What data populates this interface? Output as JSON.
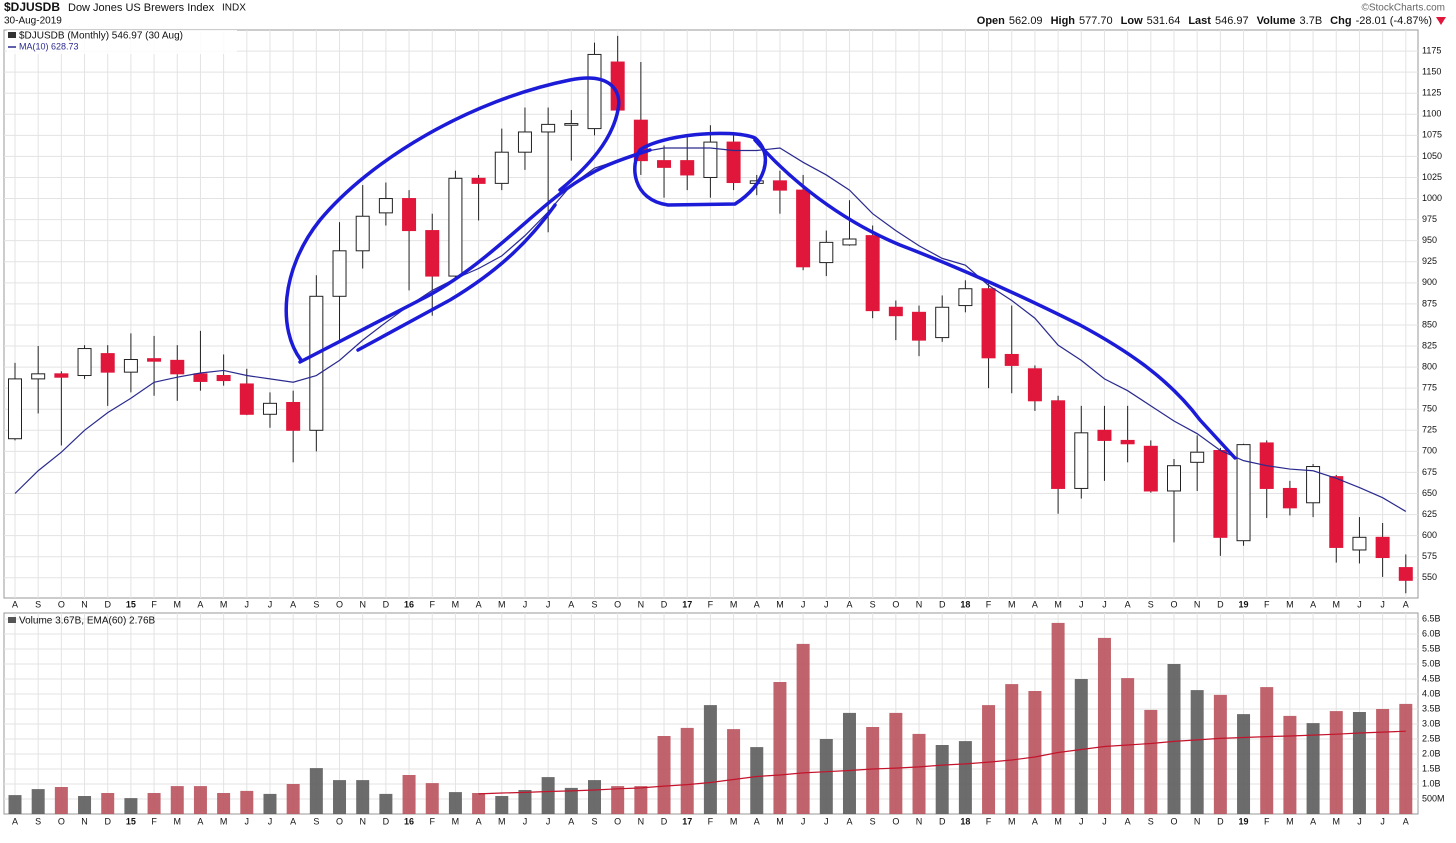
{
  "header": {
    "title": "$DJUSDB",
    "subtitle": "Dow Jones US Brewers Index",
    "exchange": "INDX",
    "date": "30-Aug-2019",
    "source": "©StockCharts.com",
    "quote": [
      {
        "label": "Open",
        "value": "562.09"
      },
      {
        "label": "High",
        "value": "577.70"
      },
      {
        "label": "Low",
        "value": "531.64"
      },
      {
        "label": "Last",
        "value": "546.97"
      },
      {
        "label": "Volume",
        "value": "3.7B"
      },
      {
        "label": "Chg",
        "value": "-28.01 (-4.87%)"
      }
    ]
  },
  "chart_data": [
    {
      "type": "candlestick",
      "legend": "$DJUSDB (Monthly) 546.97 (30 Aug)",
      "categories": [
        "A",
        "S",
        "O",
        "N",
        "D",
        "15",
        "F",
        "M",
        "A",
        "M",
        "J",
        "J",
        "A",
        "S",
        "O",
        "N",
        "D",
        "16",
        "F",
        "M",
        "A",
        "M",
        "J",
        "J",
        "A",
        "S",
        "O",
        "N",
        "D",
        "17",
        "F",
        "M",
        "A",
        "M",
        "J",
        "J",
        "A",
        "S",
        "O",
        "N",
        "D",
        "18",
        "F",
        "M",
        "A",
        "M",
        "J",
        "J",
        "A",
        "S",
        "O",
        "N",
        "D",
        "19",
        "F",
        "M",
        "A",
        "M",
        "J",
        "J",
        "A"
      ],
      "open": [
        715,
        786,
        792,
        790,
        816,
        794,
        810,
        808,
        792,
        790,
        780,
        744,
        758,
        725,
        884,
        938,
        983,
        1000,
        962,
        908,
        1024,
        1018,
        1055,
        1079,
        1087,
        1083,
        1162,
        1093,
        1045,
        1045,
        1025,
        1067,
        1018,
        1021,
        1010,
        924,
        945,
        956,
        871,
        865,
        835,
        873,
        893,
        815,
        798,
        760,
        656,
        725,
        713,
        706,
        653,
        687,
        701,
        594,
        710,
        656,
        639,
        670,
        583,
        598,
        562.09
      ],
      "high": [
        805,
        825,
        795,
        826,
        826,
        840,
        837,
        826,
        843,
        815,
        798,
        770,
        772,
        909,
        972,
        1016,
        1019,
        1010,
        982,
        1033,
        1028,
        1083,
        1108,
        1108,
        1105,
        1185,
        1193,
        1162,
        1063,
        1075,
        1087,
        1075,
        1028,
        1033,
        1028,
        962,
        998,
        968,
        879,
        873,
        885,
        903,
        903,
        873,
        802,
        766,
        754,
        754,
        754,
        713,
        691,
        719,
        704,
        709,
        713,
        665,
        685,
        672,
        622,
        615,
        577.7
      ],
      "low": [
        713,
        745,
        707,
        786,
        754,
        770,
        766,
        760,
        772,
        778,
        743,
        728,
        687,
        700,
        832,
        917,
        968,
        891,
        861,
        903,
        974,
        1010,
        1034,
        960,
        1045,
        1075,
        1099,
        1028,
        1001,
        1010,
        1001,
        1010,
        1004,
        982,
        915,
        908,
        944,
        858,
        832,
        813,
        830,
        865,
        775,
        769,
        748,
        626,
        644,
        665,
        687,
        651,
        592,
        653,
        576,
        588,
        621,
        624,
        622,
        568,
        567,
        551,
        531.64
      ],
      "close": [
        786,
        792,
        788,
        822,
        794,
        809,
        807,
        792,
        783,
        784,
        744,
        757,
        725,
        884,
        938,
        979,
        1000,
        962,
        908,
        1024,
        1018,
        1055,
        1079,
        1088,
        1089,
        1171,
        1105,
        1045,
        1037,
        1028,
        1067,
        1019,
        1021,
        1010,
        919,
        948,
        952,
        867,
        861,
        832,
        871,
        893,
        811,
        802,
        760,
        656,
        722,
        713,
        709,
        653,
        683,
        699,
        598,
        708,
        656,
        633,
        682,
        586,
        598,
        574,
        546.97
      ],
      "up_color": "#ffffff",
      "down_color": "#e0163b",
      "series": [
        {
          "name": "MA(10) 628.73",
          "color": "#2a2a8f",
          "values": [
            650,
            677,
            699,
            725,
            746,
            763,
            782,
            788,
            793,
            796,
            790,
            786,
            782,
            790,
            808,
            832,
            853,
            873,
            891,
            905,
            917,
            932,
            956,
            984,
            1016,
            1036,
            1045,
            1055,
            1060,
            1060,
            1060,
            1057,
            1057,
            1060,
            1043,
            1028,
            1010,
            982,
            962,
            944,
            929,
            921,
            897,
            879,
            858,
            826,
            808,
            786,
            772,
            754,
            736,
            721,
            701,
            689,
            683,
            679,
            677,
            668,
            657,
            645,
            628.73
          ]
        }
      ],
      "ylim": [
        526,
        1200
      ],
      "yticks": [
        550,
        575,
        600,
        625,
        650,
        675,
        700,
        725,
        750,
        775,
        800,
        825,
        850,
        875,
        900,
        925,
        950,
        975,
        1000,
        1025,
        1050,
        1075,
        1100,
        1125,
        1150,
        1175
      ],
      "grid": true
    },
    {
      "type": "bar",
      "legend": "Volume 3.67B, EMA(60) 2.76B",
      "categories": [
        "A",
        "S",
        "O",
        "N",
        "D",
        "15",
        "F",
        "M",
        "A",
        "M",
        "J",
        "J",
        "A",
        "S",
        "O",
        "N",
        "D",
        "16",
        "F",
        "M",
        "A",
        "M",
        "J",
        "J",
        "A",
        "S",
        "O",
        "N",
        "D",
        "17",
        "F",
        "M",
        "A",
        "M",
        "J",
        "J",
        "A",
        "S",
        "O",
        "N",
        "D",
        "18",
        "F",
        "M",
        "A",
        "M",
        "J",
        "J",
        "A",
        "S",
        "O",
        "N",
        "D",
        "19",
        "F",
        "M",
        "A",
        "M",
        "J",
        "J",
        "A"
      ],
      "values": [
        0.63,
        0.83,
        0.9,
        0.6,
        0.7,
        0.53,
        0.7,
        0.93,
        0.93,
        0.7,
        0.77,
        0.67,
        1.0,
        1.53,
        1.13,
        1.13,
        0.67,
        1.3,
        1.03,
        0.73,
        0.7,
        0.6,
        0.8,
        1.23,
        0.87,
        1.13,
        0.93,
        0.93,
        2.6,
        2.87,
        3.63,
        2.83,
        2.23,
        4.4,
        5.67,
        2.5,
        3.37,
        2.9,
        3.37,
        2.67,
        2.3,
        2.43,
        3.63,
        4.33,
        4.1,
        6.37,
        4.5,
        5.87,
        4.53,
        3.47,
        5.0,
        4.13,
        3.97,
        3.33,
        4.23,
        3.27,
        3.03,
        3.43,
        3.4,
        3.5,
        3.67
      ],
      "up_color": "#5c5c5c",
      "down_color": "#b9525c",
      "ema": {
        "color": "#c4142c",
        "values": [
          null,
          null,
          null,
          null,
          null,
          null,
          null,
          null,
          null,
          null,
          null,
          null,
          null,
          null,
          null,
          null,
          null,
          null,
          null,
          null,
          0.67,
          0.7,
          0.72,
          0.75,
          0.77,
          0.8,
          0.84,
          0.87,
          0.93,
          0.98,
          1.05,
          1.15,
          1.25,
          1.3,
          1.37,
          1.41,
          1.45,
          1.5,
          1.53,
          1.57,
          1.63,
          1.67,
          1.73,
          1.8,
          1.9,
          2.05,
          2.15,
          2.25,
          2.3,
          2.35,
          2.42,
          2.47,
          2.52,
          2.55,
          2.58,
          2.6,
          2.63,
          2.66,
          2.7,
          2.73,
          2.76
        ]
      },
      "ylim": [
        0,
        6.7
      ],
      "yticks": [
        {
          "value": 0.5,
          "label": "500M"
        },
        {
          "value": 1,
          "label": "1.0B"
        },
        {
          "value": 1.5,
          "label": "1.5B"
        },
        {
          "value": 2,
          "label": "2.0B"
        },
        {
          "value": 2.5,
          "label": "2.5B"
        },
        {
          "value": 3,
          "label": "3.0B"
        },
        {
          "value": 3.5,
          "label": "3.5B"
        },
        {
          "value": 4,
          "label": "4.0B"
        },
        {
          "value": 4.5,
          "label": "4.5B"
        },
        {
          "value": 5,
          "label": "5.0B"
        },
        {
          "value": 5.5,
          "label": "5.5B"
        },
        {
          "value": 6,
          "label": "6.0B"
        },
        {
          "value": 6.5,
          "label": "6.5B"
        }
      ],
      "grid": true
    }
  ]
}
